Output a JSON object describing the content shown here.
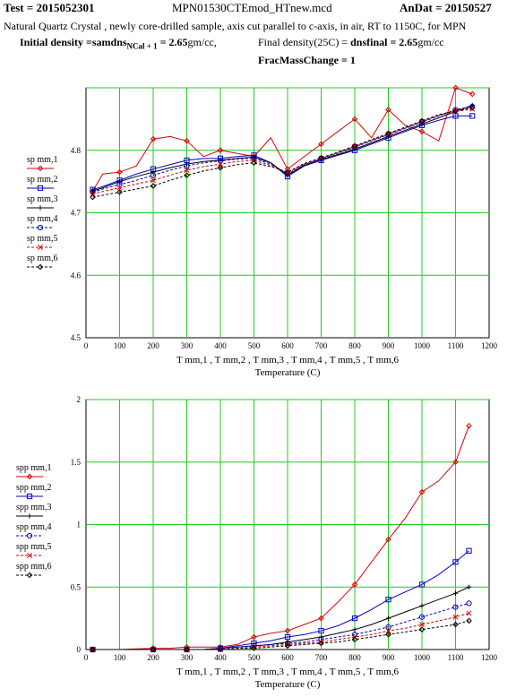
{
  "header": {
    "test": "Test = 2015052301",
    "file": "MPN01530CTEmod_HTnew.mcd",
    "andat": "AnDat = 20150527",
    "description": "Natural Quartz Crystal , newly core-drilled sample, axis cut parallel to c-axis, in air, RT to 1150C, for MPN",
    "initial_density_label": "Initial density =samdns",
    "initial_density_sub": "NCal + 1",
    "initial_density_value": "= 2.65",
    "initial_density_unit": "gm/cc,",
    "final_density_label": "Final density(25C) =",
    "final_density_name": "dnsfinal",
    "final_density_value": "= 2.65",
    "final_density_unit": "gm/cc",
    "frac_mass_change": "FracMassChange = 1"
  },
  "chart_data": [
    {
      "type": "line",
      "xlabel": "Temperature (C)",
      "x_axis_expression": "T mm,1 , T mm,2 , T mm,3 , T mm,4 , T mm,5 , T mm,6",
      "xlim": [
        0,
        1200
      ],
      "ylim": [
        4.5,
        4.9
      ],
      "xticks": [
        0,
        100,
        200,
        300,
        400,
        500,
        600,
        700,
        800,
        900,
        1000,
        1100,
        1200
      ],
      "yticks": [
        4.5,
        4.6,
        4.7,
        4.8
      ],
      "ytick_labels": [
        "4.5",
        "4.6",
        "4.7",
        "4.8"
      ],
      "grid": true,
      "legend_placement": "left",
      "series": [
        {
          "name": "sp mm,1",
          "color": "#dd0000",
          "marker": "diamond",
          "dash": "solid",
          "x": [
            20,
            50,
            100,
            150,
            200,
            250,
            300,
            350,
            400,
            450,
            500,
            550,
            600,
            650,
            700,
            750,
            800,
            850,
            900,
            950,
            1000,
            1050,
            1100,
            1150
          ],
          "y": [
            4.735,
            4.762,
            4.765,
            4.775,
            4.818,
            4.822,
            4.815,
            4.79,
            4.8,
            4.795,
            4.79,
            4.82,
            4.77,
            4.79,
            4.81,
            4.83,
            4.85,
            4.82,
            4.865,
            4.84,
            4.83,
            4.815,
            4.9,
            4.89
          ]
        },
        {
          "name": "sp mm,2",
          "color": "#0000cc",
          "marker": "square",
          "dash": "solid",
          "x": [
            20,
            50,
            100,
            150,
            200,
            250,
            300,
            350,
            400,
            450,
            500,
            550,
            600,
            650,
            700,
            750,
            800,
            850,
            900,
            950,
            1000,
            1050,
            1100,
            1150
          ],
          "y": [
            4.737,
            4.742,
            4.752,
            4.762,
            4.77,
            4.777,
            4.784,
            4.787,
            4.787,
            4.79,
            4.792,
            4.78,
            4.758,
            4.775,
            4.784,
            4.792,
            4.8,
            4.81,
            4.82,
            4.83,
            4.84,
            4.848,
            4.855,
            4.855
          ]
        },
        {
          "name": "sp mm,3",
          "color": "#000000",
          "marker": "plus",
          "dash": "solid",
          "x": [
            20,
            50,
            100,
            150,
            200,
            250,
            300,
            350,
            400,
            450,
            500,
            550,
            600,
            650,
            700,
            750,
            800,
            850,
            900,
            950,
            1000,
            1050,
            1100,
            1150
          ],
          "y": [
            4.735,
            4.74,
            4.75,
            4.758,
            4.765,
            4.772,
            4.778,
            4.782,
            4.784,
            4.787,
            4.789,
            4.78,
            4.76,
            4.776,
            4.785,
            4.793,
            4.802,
            4.812,
            4.822,
            4.832,
            4.842,
            4.852,
            4.862,
            4.872
          ]
        },
        {
          "name": "sp mm,4",
          "color": "#0000cc",
          "marker": "circle",
          "dash": "dashed",
          "x": [
            20,
            50,
            100,
            150,
            200,
            250,
            300,
            350,
            400,
            450,
            500,
            550,
            600,
            650,
            700,
            750,
            800,
            850,
            900,
            950,
            1000,
            1050,
            1100,
            1150
          ],
          "y": [
            4.733,
            4.738,
            4.745,
            4.752,
            4.76,
            4.768,
            4.775,
            4.78,
            4.783,
            4.786,
            4.787,
            4.778,
            4.762,
            4.777,
            4.786,
            4.795,
            4.805,
            4.815,
            4.825,
            4.835,
            4.845,
            4.855,
            4.865,
            4.87
          ]
        },
        {
          "name": "sp mm,5",
          "color": "#dd0000",
          "marker": "x",
          "dash": "dashed",
          "x": [
            20,
            50,
            100,
            150,
            200,
            250,
            300,
            350,
            400,
            450,
            500,
            550,
            600,
            650,
            700,
            750,
            800,
            850,
            900,
            950,
            1000,
            1050,
            1100,
            1150
          ],
          "y": [
            4.73,
            4.734,
            4.74,
            4.746,
            4.752,
            4.76,
            4.768,
            4.774,
            4.778,
            4.782,
            4.784,
            4.776,
            4.764,
            4.778,
            4.787,
            4.796,
            4.806,
            4.816,
            4.826,
            4.836,
            4.846,
            4.856,
            4.862,
            4.866
          ]
        },
        {
          "name": "sp mm,6",
          "color": "#000000",
          "marker": "diamond",
          "dash": "dashed",
          "x": [
            20,
            50,
            100,
            150,
            200,
            250,
            300,
            350,
            400,
            450,
            500,
            550,
            600,
            650,
            700,
            750,
            800,
            850,
            900,
            950,
            1000,
            1050,
            1100,
            1150
          ],
          "y": [
            4.725,
            4.728,
            4.733,
            4.738,
            4.743,
            4.752,
            4.76,
            4.767,
            4.772,
            4.777,
            4.78,
            4.774,
            4.765,
            4.779,
            4.788,
            4.797,
            4.807,
            4.817,
            4.827,
            4.837,
            4.847,
            4.857,
            4.863,
            4.868
          ]
        }
      ]
    },
    {
      "type": "line",
      "xlabel": "Temperature (C)",
      "x_axis_expression": "T mm,1 , T mm,2 , T mm,3 , T mm,4 , T mm,5 , T mm,6",
      "xlim": [
        0,
        1200
      ],
      "ylim": [
        0,
        2
      ],
      "xticks": [
        0,
        100,
        200,
        300,
        400,
        500,
        600,
        700,
        800,
        900,
        1000,
        1100,
        1200
      ],
      "yticks": [
        0,
        0.5,
        1,
        1.5,
        2
      ],
      "ytick_labels": [
        "0",
        "0.5",
        "1",
        "1.5",
        "2"
      ],
      "grid": true,
      "legend_placement": "left",
      "series": [
        {
          "name": "spp mm,1",
          "color": "#dd0000",
          "marker": "diamond",
          "dash": "solid",
          "x": [
            20,
            100,
            200,
            250,
            300,
            350,
            400,
            450,
            500,
            550,
            600,
            650,
            700,
            750,
            800,
            850,
            900,
            950,
            1000,
            1050,
            1100,
            1140
          ],
          "y": [
            0,
            0,
            0.01,
            0.01,
            0.02,
            0.02,
            0.02,
            0.04,
            0.1,
            0.13,
            0.15,
            0.2,
            0.25,
            0.38,
            0.52,
            0.7,
            0.88,
            1.05,
            1.26,
            1.35,
            1.5,
            1.79
          ]
        },
        {
          "name": "spp mm,2",
          "color": "#0000cc",
          "marker": "square",
          "dash": "solid",
          "x": [
            20,
            100,
            200,
            250,
            300,
            350,
            400,
            450,
            500,
            550,
            600,
            650,
            700,
            750,
            800,
            850,
            900,
            950,
            1000,
            1050,
            1100,
            1140
          ],
          "y": [
            0,
            0,
            0,
            0,
            0,
            0,
            0.01,
            0.03,
            0.05,
            0.07,
            0.1,
            0.12,
            0.15,
            0.19,
            0.25,
            0.32,
            0.4,
            0.46,
            0.52,
            0.6,
            0.7,
            0.79
          ]
        },
        {
          "name": "spp mm,3",
          "color": "#000000",
          "marker": "plus",
          "dash": "solid",
          "x": [
            20,
            100,
            200,
            250,
            300,
            350,
            400,
            450,
            500,
            550,
            600,
            650,
            700,
            750,
            800,
            850,
            900,
            950,
            1000,
            1050,
            1100,
            1140
          ],
          "y": [
            0,
            0,
            0,
            0,
            0,
            0,
            0.01,
            0.02,
            0.03,
            0.04,
            0.06,
            0.08,
            0.1,
            0.13,
            0.16,
            0.2,
            0.25,
            0.3,
            0.35,
            0.4,
            0.45,
            0.5
          ]
        },
        {
          "name": "spp mm,4",
          "color": "#0000cc",
          "marker": "circle",
          "dash": "dashed",
          "x": [
            20,
            100,
            200,
            250,
            300,
            350,
            400,
            450,
            500,
            550,
            600,
            650,
            700,
            750,
            800,
            850,
            900,
            950,
            1000,
            1050,
            1100,
            1140
          ],
          "y": [
            0,
            0,
            0,
            0,
            0,
            0,
            0.01,
            0.02,
            0.03,
            0.04,
            0.05,
            0.06,
            0.08,
            0.1,
            0.12,
            0.15,
            0.18,
            0.22,
            0.26,
            0.3,
            0.34,
            0.37
          ]
        },
        {
          "name": "spp mm,5",
          "color": "#dd0000",
          "marker": "x",
          "dash": "dashed",
          "x": [
            20,
            100,
            200,
            250,
            300,
            350,
            400,
            450,
            500,
            550,
            600,
            650,
            700,
            750,
            800,
            850,
            900,
            950,
            1000,
            1050,
            1100,
            1140
          ],
          "y": [
            0,
            0,
            0,
            0,
            0,
            0,
            0,
            0.01,
            0.02,
            0.03,
            0.04,
            0.05,
            0.06,
            0.08,
            0.1,
            0.12,
            0.15,
            0.17,
            0.2,
            0.23,
            0.26,
            0.29
          ]
        },
        {
          "name": "spp mm,6",
          "color": "#000000",
          "marker": "diamond",
          "dash": "dashed",
          "x": [
            20,
            100,
            200,
            250,
            300,
            350,
            400,
            450,
            500,
            550,
            600,
            650,
            700,
            750,
            800,
            850,
            900,
            950,
            1000,
            1050,
            1100,
            1140
          ],
          "y": [
            0,
            0,
            0,
            0,
            0,
            0,
            0,
            0.01,
            0.01,
            0.02,
            0.03,
            0.04,
            0.05,
            0.06,
            0.08,
            0.1,
            0.12,
            0.14,
            0.16,
            0.18,
            0.2,
            0.23
          ]
        }
      ]
    }
  ]
}
